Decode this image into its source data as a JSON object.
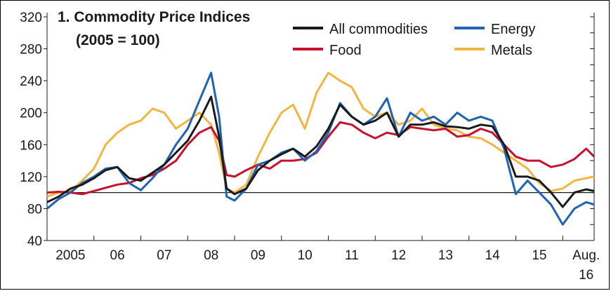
{
  "chart_data": {
    "type": "line",
    "title": "1. Commodity Price Indices",
    "subtitle": "(2005 = 100)",
    "xlabel": "",
    "ylabel": "",
    "ylim": [
      40,
      320
    ],
    "yticks": [
      40,
      80,
      120,
      160,
      200,
      240,
      280,
      320
    ],
    "xlim": [
      2005.0,
      2016.67
    ],
    "xticks": [
      {
        "x": 2005.5,
        "label": "2005"
      },
      {
        "x": 2006.5,
        "label": "06"
      },
      {
        "x": 2007.5,
        "label": "07"
      },
      {
        "x": 2008.5,
        "label": "08"
      },
      {
        "x": 2009.5,
        "label": "09"
      },
      {
        "x": 2010.5,
        "label": "10"
      },
      {
        "x": 2011.5,
        "label": "11"
      },
      {
        "x": 2012.5,
        "label": "12"
      },
      {
        "x": 2013.5,
        "label": "13"
      },
      {
        "x": 2014.5,
        "label": "14"
      },
      {
        "x": 2015.5,
        "label": "15"
      },
      {
        "x": 2016.5,
        "label": "Aug.",
        "label2": "16"
      }
    ],
    "reference_line": 100,
    "grid": false,
    "legend_position": "top-right",
    "series": [
      {
        "name": "All commodities",
        "color": "#1a1a1a",
        "points": [
          [
            2005.0,
            88
          ],
          [
            2005.25,
            95
          ],
          [
            2005.5,
            105
          ],
          [
            2005.75,
            110
          ],
          [
            2006.0,
            118
          ],
          [
            2006.25,
            128
          ],
          [
            2006.5,
            132
          ],
          [
            2006.75,
            118
          ],
          [
            2007.0,
            115
          ],
          [
            2007.25,
            125
          ],
          [
            2007.5,
            135
          ],
          [
            2007.75,
            150
          ],
          [
            2008.0,
            165
          ],
          [
            2008.25,
            190
          ],
          [
            2008.5,
            220
          ],
          [
            2008.67,
            170
          ],
          [
            2008.83,
            105
          ],
          [
            2009.0,
            98
          ],
          [
            2009.25,
            105
          ],
          [
            2009.5,
            128
          ],
          [
            2009.75,
            140
          ],
          [
            2010.0,
            148
          ],
          [
            2010.25,
            155
          ],
          [
            2010.5,
            145
          ],
          [
            2010.75,
            158
          ],
          [
            2011.0,
            180
          ],
          [
            2011.25,
            210
          ],
          [
            2011.5,
            195
          ],
          [
            2011.75,
            185
          ],
          [
            2012.0,
            190
          ],
          [
            2012.25,
            200
          ],
          [
            2012.5,
            170
          ],
          [
            2012.75,
            185
          ],
          [
            2013.0,
            185
          ],
          [
            2013.25,
            188
          ],
          [
            2013.5,
            183
          ],
          [
            2013.75,
            182
          ],
          [
            2014.0,
            180
          ],
          [
            2014.25,
            185
          ],
          [
            2014.5,
            183
          ],
          [
            2014.75,
            160
          ],
          [
            2015.0,
            120
          ],
          [
            2015.25,
            120
          ],
          [
            2015.5,
            115
          ],
          [
            2015.75,
            100
          ],
          [
            2016.0,
            82
          ],
          [
            2016.25,
            100
          ],
          [
            2016.5,
            104
          ],
          [
            2016.67,
            102
          ]
        ]
      },
      {
        "name": "Energy",
        "color": "#1f64b4",
        "points": [
          [
            2005.0,
            80
          ],
          [
            2005.25,
            92
          ],
          [
            2005.5,
            100
          ],
          [
            2005.75,
            112
          ],
          [
            2006.0,
            120
          ],
          [
            2006.25,
            130
          ],
          [
            2006.5,
            132
          ],
          [
            2006.75,
            112
          ],
          [
            2007.0,
            103
          ],
          [
            2007.25,
            118
          ],
          [
            2007.5,
            135
          ],
          [
            2007.75,
            160
          ],
          [
            2008.0,
            180
          ],
          [
            2008.25,
            215
          ],
          [
            2008.5,
            250
          ],
          [
            2008.67,
            195
          ],
          [
            2008.83,
            95
          ],
          [
            2009.0,
            90
          ],
          [
            2009.25,
            105
          ],
          [
            2009.5,
            135
          ],
          [
            2009.75,
            140
          ],
          [
            2010.0,
            150
          ],
          [
            2010.25,
            155
          ],
          [
            2010.5,
            140
          ],
          [
            2010.75,
            152
          ],
          [
            2011.0,
            175
          ],
          [
            2011.25,
            212
          ],
          [
            2011.5,
            195
          ],
          [
            2011.75,
            185
          ],
          [
            2012.0,
            195
          ],
          [
            2012.25,
            218
          ],
          [
            2012.5,
            170
          ],
          [
            2012.75,
            200
          ],
          [
            2013.0,
            190
          ],
          [
            2013.25,
            195
          ],
          [
            2013.5,
            185
          ],
          [
            2013.75,
            200
          ],
          [
            2014.0,
            190
          ],
          [
            2014.25,
            195
          ],
          [
            2014.5,
            190
          ],
          [
            2014.75,
            155
          ],
          [
            2015.0,
            98
          ],
          [
            2015.25,
            115
          ],
          [
            2015.5,
            100
          ],
          [
            2015.75,
            85
          ],
          [
            2016.0,
            60
          ],
          [
            2016.25,
            80
          ],
          [
            2016.5,
            88
          ],
          [
            2016.67,
            85
          ]
        ]
      },
      {
        "name": "Food",
        "color": "#c8102e",
        "points": [
          [
            2005.0,
            100
          ],
          [
            2005.25,
            101
          ],
          [
            2005.5,
            100
          ],
          [
            2005.75,
            98
          ],
          [
            2006.0,
            102
          ],
          [
            2006.25,
            106
          ],
          [
            2006.5,
            110
          ],
          [
            2006.75,
            112
          ],
          [
            2007.0,
            118
          ],
          [
            2007.25,
            122
          ],
          [
            2007.5,
            130
          ],
          [
            2007.75,
            140
          ],
          [
            2008.0,
            160
          ],
          [
            2008.25,
            175
          ],
          [
            2008.5,
            182
          ],
          [
            2008.67,
            165
          ],
          [
            2008.83,
            122
          ],
          [
            2009.0,
            120
          ],
          [
            2009.25,
            128
          ],
          [
            2009.5,
            135
          ],
          [
            2009.75,
            130
          ],
          [
            2010.0,
            140
          ],
          [
            2010.25,
            140
          ],
          [
            2010.5,
            142
          ],
          [
            2010.75,
            150
          ],
          [
            2011.0,
            170
          ],
          [
            2011.25,
            188
          ],
          [
            2011.5,
            185
          ],
          [
            2011.75,
            175
          ],
          [
            2012.0,
            168
          ],
          [
            2012.25,
            175
          ],
          [
            2012.5,
            172
          ],
          [
            2012.75,
            182
          ],
          [
            2013.0,
            180
          ],
          [
            2013.25,
            178
          ],
          [
            2013.5,
            180
          ],
          [
            2013.75,
            170
          ],
          [
            2014.0,
            172
          ],
          [
            2014.25,
            180
          ],
          [
            2014.5,
            175
          ],
          [
            2014.75,
            160
          ],
          [
            2015.0,
            145
          ],
          [
            2015.25,
            140
          ],
          [
            2015.5,
            140
          ],
          [
            2015.75,
            132
          ],
          [
            2016.0,
            135
          ],
          [
            2016.25,
            142
          ],
          [
            2016.5,
            155
          ],
          [
            2016.67,
            145
          ]
        ]
      },
      {
        "name": "Metals",
        "color": "#f4b540",
        "points": [
          [
            2005.0,
            95
          ],
          [
            2005.25,
            100
          ],
          [
            2005.5,
            102
          ],
          [
            2005.75,
            115
          ],
          [
            2006.0,
            130
          ],
          [
            2006.25,
            160
          ],
          [
            2006.5,
            175
          ],
          [
            2006.75,
            185
          ],
          [
            2007.0,
            190
          ],
          [
            2007.25,
            205
          ],
          [
            2007.5,
            200
          ],
          [
            2007.75,
            180
          ],
          [
            2008.0,
            190
          ],
          [
            2008.25,
            200
          ],
          [
            2008.5,
            185
          ],
          [
            2008.67,
            150
          ],
          [
            2008.83,
            105
          ],
          [
            2009.0,
            100
          ],
          [
            2009.25,
            110
          ],
          [
            2009.5,
            145
          ],
          [
            2009.75,
            175
          ],
          [
            2010.0,
            200
          ],
          [
            2010.25,
            210
          ],
          [
            2010.5,
            180
          ],
          [
            2010.75,
            225
          ],
          [
            2011.0,
            250
          ],
          [
            2011.25,
            240
          ],
          [
            2011.5,
            232
          ],
          [
            2011.75,
            205
          ],
          [
            2012.0,
            195
          ],
          [
            2012.25,
            200
          ],
          [
            2012.5,
            185
          ],
          [
            2012.75,
            190
          ],
          [
            2013.0,
            205
          ],
          [
            2013.25,
            185
          ],
          [
            2013.5,
            180
          ],
          [
            2013.75,
            178
          ],
          [
            2014.0,
            170
          ],
          [
            2014.25,
            168
          ],
          [
            2014.5,
            160
          ],
          [
            2014.75,
            150
          ],
          [
            2015.0,
            140
          ],
          [
            2015.25,
            130
          ],
          [
            2015.5,
            112
          ],
          [
            2015.75,
            102
          ],
          [
            2016.0,
            105
          ],
          [
            2016.25,
            115
          ],
          [
            2016.5,
            118
          ],
          [
            2016.67,
            120
          ]
        ]
      }
    ]
  }
}
